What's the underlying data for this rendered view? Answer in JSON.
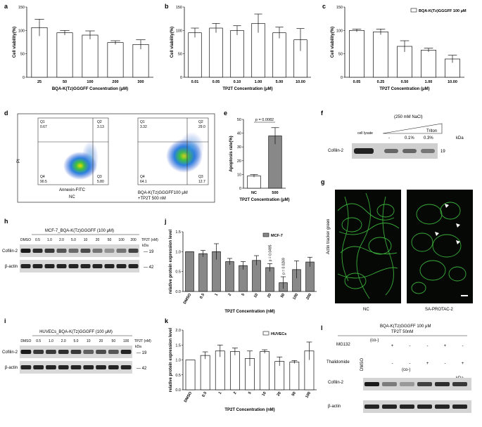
{
  "panels": {
    "a": "a",
    "b": "b",
    "c": "c",
    "d": "d",
    "e": "e",
    "f": "f",
    "g": "g",
    "h": "h",
    "i": "i",
    "j": "j",
    "k": "k",
    "l": "l"
  },
  "chart_data": [
    {
      "id": "a",
      "type": "bar",
      "categories": [
        "25",
        "50",
        "100",
        "200",
        "300"
      ],
      "values": [
        106,
        95,
        90,
        74,
        70
      ],
      "errors": [
        18,
        5,
        9,
        4,
        10
      ],
      "xlabel": "BQA-K(Tz)GGGFF Concentration (μM)",
      "ylabel": "Cell viability(%)",
      "ylim": [
        0,
        150
      ],
      "yticks": [
        "0",
        "50",
        "100",
        "150"
      ]
    },
    {
      "id": "b",
      "type": "bar",
      "categories": [
        "0.01",
        "0.05",
        "0.10",
        "1.00",
        "5.00",
        "10.00"
      ],
      "values": [
        95,
        105,
        100,
        115,
        95,
        80
      ],
      "errors": [
        10,
        10,
        10,
        20,
        12,
        24
      ],
      "xlabel": "TP2T Concentration (μM)",
      "ylabel": "Cell viability(%)",
      "ylim": [
        0,
        150
      ],
      "yticks": [
        "0",
        "50",
        "100",
        "150"
      ]
    },
    {
      "id": "c",
      "type": "bar",
      "categories": [
        "0.05",
        "0.25",
        "0.50",
        "1.00",
        "10.00"
      ],
      "values": [
        100,
        97,
        66,
        58,
        39
      ],
      "errors": [
        3,
        6,
        12,
        4,
        8
      ],
      "xlabel": "TP2T Concentration (μM)",
      "ylabel": "Cell viability(%)",
      "legend": "BQA-K(Tz)GGGFF 100 μM",
      "ylim": [
        0,
        150
      ],
      "yticks": [
        "0",
        "50",
        "100",
        "150"
      ]
    },
    {
      "id": "e",
      "type": "bar",
      "categories": [
        "NC",
        "500"
      ],
      "values": [
        9,
        38
      ],
      "errors": [
        1,
        6
      ],
      "xlabel": "TP2T Concentration (μM)",
      "ylabel": "Apoptosis rate(%)",
      "annotation": "p = 0.0082",
      "ylim": [
        0,
        50
      ],
      "yticks": [
        "0",
        "10",
        "20",
        "30",
        "40",
        "50"
      ]
    },
    {
      "id": "j",
      "type": "bar",
      "categories": [
        "DMSO",
        "0.5",
        "1",
        "2",
        "5",
        "10",
        "20",
        "50",
        "100",
        "200"
      ],
      "values": [
        1.0,
        0.95,
        1.0,
        0.75,
        0.65,
        0.78,
        0.6,
        0.22,
        0.55,
        0.74
      ],
      "errors": [
        0.0,
        0.08,
        0.2,
        0.08,
        0.1,
        0.12,
        0.1,
        0.15,
        0.22,
        0.12
      ],
      "xlabel": "TP2T Concentration (nM)",
      "ylabel": "relative protein expression level",
      "legend": "MCF-7",
      "annotations": [
        "p = 0.0495",
        "p = 0.0269"
      ],
      "ylim": [
        0,
        1.5
      ],
      "yticks": [
        "0.0",
        "0.5",
        "1.0",
        "1.5"
      ]
    },
    {
      "id": "k",
      "type": "bar",
      "categories": [
        "DMSO",
        "0.5",
        "1",
        "2",
        "5",
        "10",
        "20",
        "50",
        "100"
      ],
      "values": [
        1.0,
        1.15,
        1.3,
        1.28,
        1.05,
        1.28,
        0.95,
        0.93,
        1.3
      ],
      "errors": [
        0.0,
        0.12,
        0.2,
        0.12,
        0.25,
        0.06,
        0.15,
        0.05,
        0.3
      ],
      "xlabel": "TP2T Concentration (nM)",
      "ylabel": "relative protein expression level",
      "legend": "HUVECs",
      "ylim": [
        0,
        2.0
      ],
      "yticks": [
        "0.0",
        "0.5",
        "1.0",
        "1.5",
        "2.0"
      ]
    }
  ],
  "flow": {
    "ylabel": "PI",
    "xlabel": "Annexin-FITC",
    "left": {
      "q1": "Q1",
      "q1v": "0.67",
      "q2": "Q2",
      "q2v": "3.13",
      "q3": "Q3",
      "q3v": "5.80",
      "q4": "Q4",
      "q4v": "90.5",
      "caption": "NC"
    },
    "right": {
      "q1": "Q1",
      "q1v": "3.32",
      "q2": "Q2",
      "q2v": "29.0",
      "q3": "Q3",
      "q3v": "12.7",
      "q4": "Q4",
      "q4v": "64.1",
      "caption": "BQA-K(Tz)GGGFF100 μM",
      "caption2": "+TP2T 500 nM"
    }
  },
  "blot_f": {
    "header": "(250 mM NaCl)",
    "triton": "Triton",
    "kda": "kDa",
    "cols": [
      "cell lysate",
      "-",
      "0.1%",
      "0.3%"
    ],
    "row": "Cofilin-2",
    "marker": "19"
  },
  "micro_g": {
    "ylabel": "Actin tracker green",
    "left": "NC",
    "right": "SA-PROTAC-2"
  },
  "blot_h": {
    "title": "MCF-7_BQA-K(Tz)GGGFF (100 μM)",
    "cols": [
      "DMSO",
      "0.5",
      "1.0",
      "2.0",
      "5.0",
      "10",
      "20",
      "50",
      "100",
      "200"
    ],
    "unit": "TP2T (nM)",
    "kda": "kDa",
    "rows": [
      "Cofilin-2",
      "β-actin"
    ],
    "markers": [
      "19",
      "42"
    ]
  },
  "blot_i": {
    "title": "HUVECs_BQA-K(Tz)GGGFF (100 μM)",
    "cols": [
      "DMSO",
      "0.5",
      "1.0",
      "2.0",
      "5.0",
      "10",
      "20",
      "50",
      "100"
    ],
    "unit": "TP2T (nM)",
    "kda": "kDa",
    "rows": [
      "Cofilin-2",
      "β-actin"
    ],
    "markers": [
      "19",
      "42"
    ]
  },
  "blot_l": {
    "title": "BQA-K(Tz)GGGFF 100 μM",
    "title2": "TP2T 50nM",
    "mg132": "MG132",
    "thalidomide": "Thalidomide",
    "dmso": "DMSO",
    "co1": "(co-)",
    "co2": "(co-)",
    "mg_row": [
      "+",
      "-",
      "-",
      "+",
      "-"
    ],
    "th_row": [
      "-",
      "-",
      "+",
      "-",
      "+"
    ],
    "kda": "kDa",
    "rows": [
      "Cofilin-2",
      "β-actin"
    ],
    "markers": [
      "19",
      "42"
    ]
  }
}
